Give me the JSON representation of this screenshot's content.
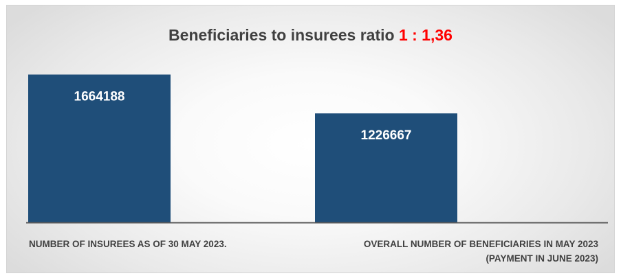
{
  "chart_data": {
    "type": "bar",
    "title": "Beneficiaries to insurees ratio",
    "title_ratio": "1 : 1,36",
    "categories": [
      "NUMBER  OF INSUREES  AS OF  30 MAY 2023.",
      "OVERALL NUMBER OF BENEFICIARIES IN MAY 2023 (PAYMENT IN JUNE 2023)"
    ],
    "values": [
      1664188,
      1226667
    ],
    "value_labels": [
      "1664188",
      "1226667"
    ],
    "ylim": [
      0,
      2000000
    ],
    "grid": false,
    "legend": "none",
    "xlabel": "",
    "ylabel": ""
  },
  "colors": {
    "bar": "#1f4e79",
    "title_text": "#404040",
    "ratio_text": "#ff0000",
    "axis_line": "#595959"
  }
}
